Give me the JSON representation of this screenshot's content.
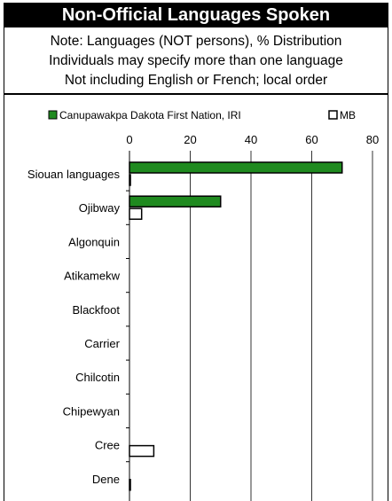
{
  "chart_data": {
    "type": "bar",
    "orientation": "horizontal",
    "title": "Non-Official Languages Spoken",
    "notes": [
      "Note: Languages (NOT persons), % Distribution",
      "Individuals may specify more than one language",
      "Not including English or French; local order"
    ],
    "categories": [
      "Siouan languages",
      "Ojibway",
      "Algonquin",
      "Atikamekw",
      "Blackfoot",
      "Carrier",
      "Chilcotin",
      "Chipewyan",
      "Cree",
      "Dene"
    ],
    "series": [
      {
        "name": "Canupawakpa Dakota First Nation, IRI",
        "color": "#1f8a1f",
        "values": [
          70,
          30,
          0,
          0,
          0,
          0,
          0,
          0,
          0,
          0
        ]
      },
      {
        "name": "MB",
        "color": "#ffffff",
        "values": [
          0.3,
          4,
          0,
          0,
          0,
          0,
          0,
          0,
          8,
          0.3
        ]
      }
    ],
    "xlim": [
      0,
      80
    ],
    "xticks": [
      0,
      20,
      40,
      60,
      80
    ],
    "grid": true,
    "legend_position": "top"
  }
}
